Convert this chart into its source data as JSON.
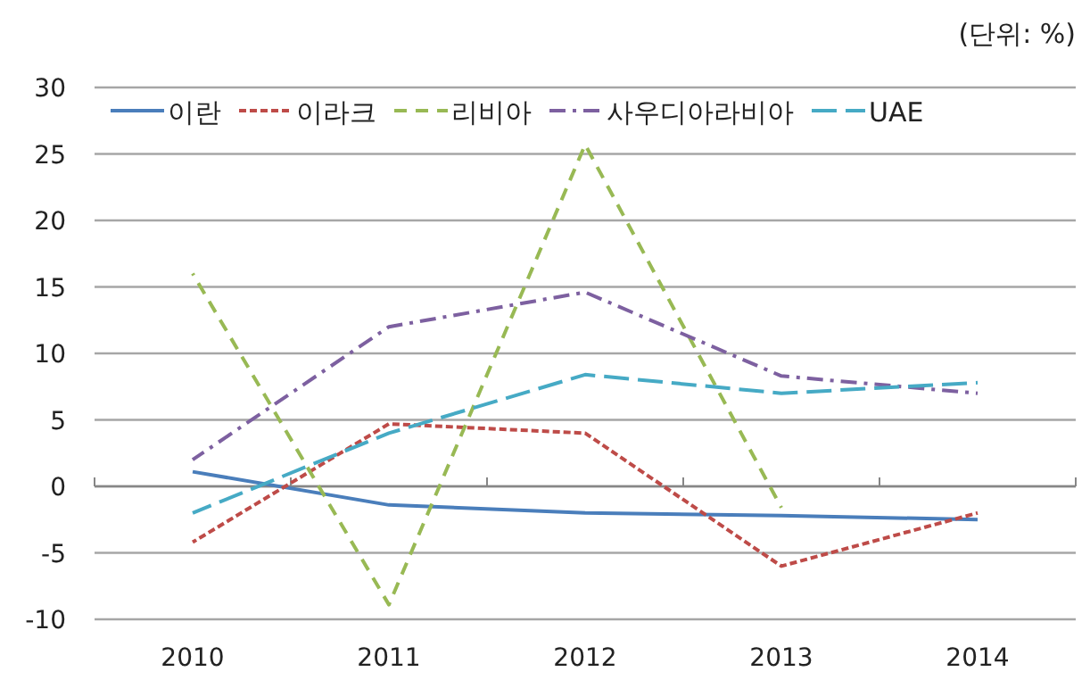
{
  "chart_data": {
    "type": "line",
    "annotations": [
      "(단위: %)"
    ],
    "categories": [
      "2010",
      "2011",
      "2012",
      "2013",
      "2014"
    ],
    "series": [
      {
        "name": "이란",
        "color": "#4a7ebb",
        "line_style": "solid",
        "values": [
          1.1,
          -1.4,
          -2.0,
          -2.2,
          -2.5
        ]
      },
      {
        "name": "이라크",
        "color": "#be4b48",
        "line_style": "dotted",
        "values": [
          -4.2,
          4.7,
          4.0,
          -6.0,
          -2.0
        ]
      },
      {
        "name": "리비아",
        "color": "#98b954",
        "line_style": "dashed",
        "values": [
          16.0,
          -8.9,
          25.7,
          -1.6,
          null
        ]
      },
      {
        "name": "사우디아라비아",
        "color": "#7d60a0",
        "line_style": "dashdot",
        "values": [
          2.0,
          12.0,
          14.6,
          8.3,
          7.0
        ]
      },
      {
        "name": "UAE",
        "color": "#46aac5",
        "line_style": "longdash",
        "values": [
          -2.0,
          4.0,
          8.4,
          7.0,
          7.8
        ]
      }
    ],
    "ylim": [
      -10,
      30
    ],
    "yticks": [
      -10,
      -5,
      0,
      5,
      10,
      15,
      20,
      25,
      30
    ],
    "grid": "y",
    "legend": "top",
    "marker": "none"
  }
}
